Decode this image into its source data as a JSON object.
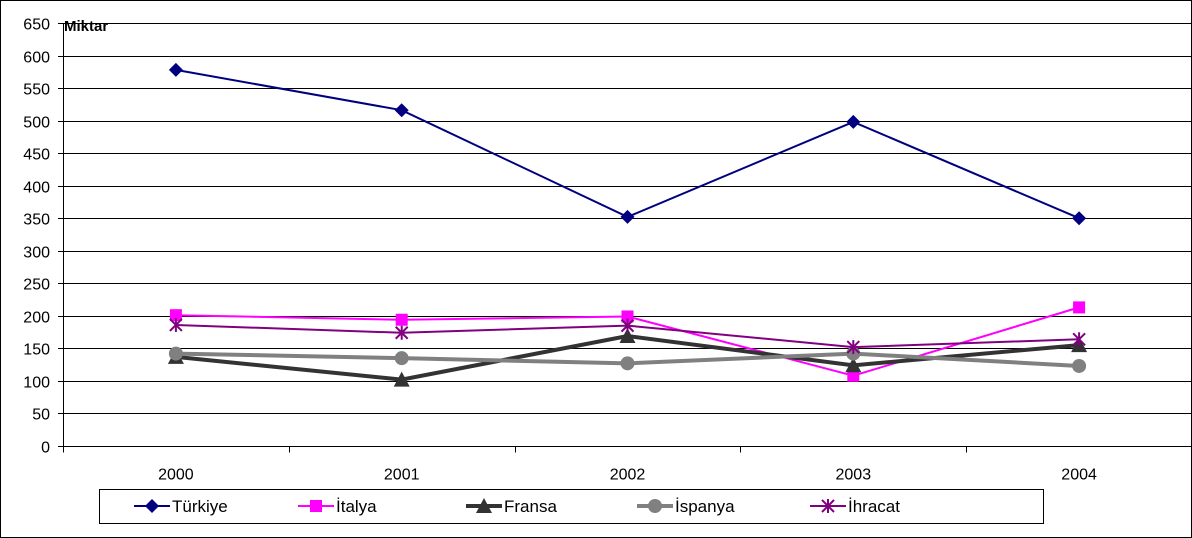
{
  "chart_data": {
    "type": "line",
    "title": "",
    "ylabel": "Miktar",
    "xlabel": "",
    "categories": [
      "2000",
      "2001",
      "2002",
      "2003",
      "2004"
    ],
    "ylim": [
      0,
      650
    ],
    "yticks": [
      0,
      50,
      100,
      150,
      200,
      250,
      300,
      350,
      400,
      450,
      500,
      550,
      600,
      650
    ],
    "grid": true,
    "legend_position": "bottom",
    "series": [
      {
        "name": "Türkiye",
        "values": [
          578,
          516,
          352,
          498,
          350
        ],
        "color": "#000080",
        "marker": "diamond",
        "width": 2
      },
      {
        "name": "İtalya",
        "values": [
          201,
          194,
          199,
          108,
          213
        ],
        "color": "#ff00ff",
        "marker": "square",
        "width": 2
      },
      {
        "name": "Fransa",
        "values": [
          137,
          102,
          169,
          124,
          155
        ],
        "color": "#333333",
        "marker": "triangle",
        "width": 4
      },
      {
        "name": "İspanya",
        "values": [
          142,
          135,
          127,
          142,
          123
        ],
        "color": "#808080",
        "marker": "circle",
        "width": 4
      },
      {
        "name": "İhracat",
        "values": [
          186,
          174,
          185,
          152,
          164
        ],
        "color": "#800080",
        "marker": "asterisk",
        "width": 2
      }
    ]
  }
}
